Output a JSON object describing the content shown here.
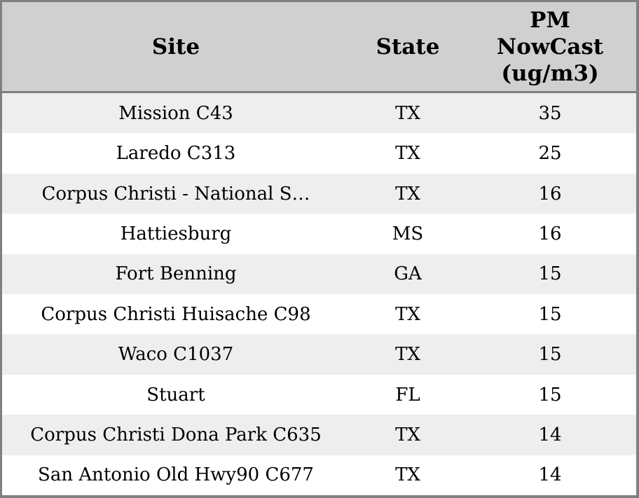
{
  "colors": {
    "header_bg": "#d0d0d0",
    "row_odd_bg": "#eeeeee",
    "row_even_bg": "#ffffff",
    "border": "#808080",
    "text": "#000000"
  },
  "table": {
    "columns": [
      {
        "key": "site",
        "label": "Site"
      },
      {
        "key": "state",
        "label": "State"
      },
      {
        "key": "pm",
        "label": "PM NowCast (ug/m3)"
      }
    ],
    "rows": [
      {
        "site": "Mission C43",
        "state": "TX",
        "pm": "35"
      },
      {
        "site": "Laredo C313",
        "state": "TX",
        "pm": "25"
      },
      {
        "site": "Corpus Christi - National S…",
        "state": "TX",
        "pm": "16"
      },
      {
        "site": "Hattiesburg",
        "state": "MS",
        "pm": "16"
      },
      {
        "site": "Fort Benning",
        "state": "GA",
        "pm": "15"
      },
      {
        "site": "Corpus Christi Huisache C98",
        "state": "TX",
        "pm": "15"
      },
      {
        "site": "Waco C1037",
        "state": "TX",
        "pm": "15"
      },
      {
        "site": "Stuart",
        "state": "FL",
        "pm": "15"
      },
      {
        "site": "Corpus Christi Dona Park C635",
        "state": "TX",
        "pm": "14"
      },
      {
        "site": "San Antonio Old Hwy90 C677",
        "state": "TX",
        "pm": "14"
      }
    ]
  }
}
